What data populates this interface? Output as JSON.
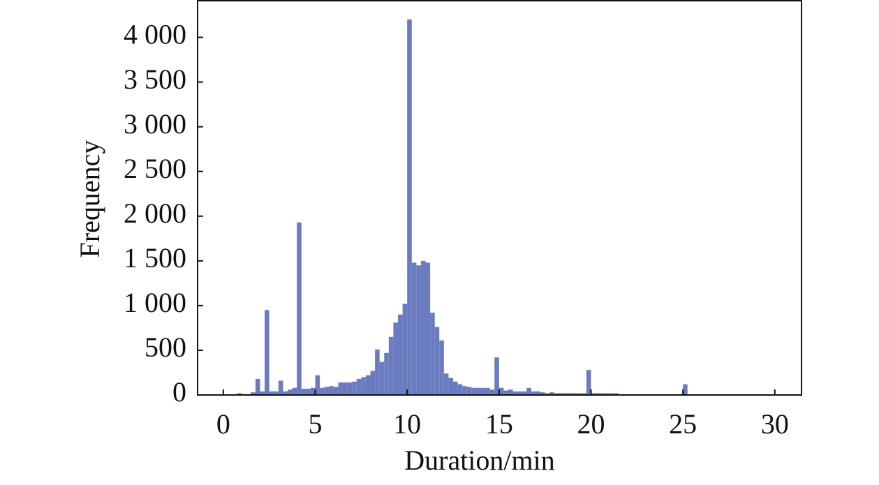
{
  "chart_data": {
    "type": "histogram",
    "xlabel": "Duration/min",
    "ylabel": "Frequency",
    "color": "#6b7bbf",
    "xlim": [
      -1.4,
      31.45
    ],
    "ylim": [
      0,
      4410
    ],
    "xticks": [
      0,
      5,
      10,
      15,
      20,
      25,
      30
    ],
    "yticks": [
      0,
      500,
      {
        "value": 1000,
        "label": "1 000"
      },
      {
        "value": 1500,
        "label": "1 500"
      },
      {
        "value": 2000,
        "label": "2 000"
      },
      {
        "value": 2500,
        "label": "2 500"
      },
      {
        "value": 3000,
        "label": "3 000"
      },
      {
        "value": 3500,
        "label": "3 500"
      },
      {
        "value": 4000,
        "label": "4 000"
      }
    ],
    "bins": [
      0.5,
      0.75,
      1,
      1.25,
      1.5,
      1.75,
      2,
      2.25,
      2.5,
      2.75,
      3,
      3.25,
      3.5,
      3.75,
      4,
      4.25,
      4.5,
      4.75,
      5,
      5.25,
      5.5,
      5.75,
      6,
      6.25,
      6.5,
      6.75,
      7,
      7.25,
      7.5,
      7.75,
      8,
      8.25,
      8.5,
      8.75,
      9,
      9.25,
      9.5,
      9.75,
      10,
      10.25,
      10.5,
      10.75,
      11,
      11.25,
      11.5,
      11.75,
      12,
      12.25,
      12.5,
      12.75,
      13,
      13.25,
      13.5,
      13.75,
      14,
      14.25,
      14.5,
      14.75,
      15,
      15.25,
      15.5,
      15.75,
      16,
      16.25,
      16.5,
      16.75,
      17,
      17.25,
      17.5,
      17.75,
      18,
      18.25,
      18.5,
      18.75,
      19,
      19.25,
      19.5,
      19.75,
      20,
      20.25,
      20.5,
      20.75,
      21,
      21.25,
      21.5,
      21.75,
      22,
      22.25,
      22.5,
      22.75,
      23,
      23.25,
      23.5,
      23.75,
      24,
      24.25,
      24.5,
      24.75,
      25,
      25.25
    ],
    "values": [
      0,
      20,
      10,
      10,
      30,
      180,
      40,
      950,
      40,
      40,
      160,
      40,
      60,
      80,
      1930,
      70,
      70,
      80,
      220,
      80,
      90,
      100,
      90,
      140,
      140,
      140,
      150,
      180,
      200,
      220,
      270,
      510,
      370,
      470,
      650,
      810,
      900,
      1020,
      4200,
      1480,
      1450,
      1500,
      1480,
      920,
      760,
      610,
      240,
      190,
      150,
      120,
      100,
      90,
      80,
      80,
      80,
      80,
      60,
      420,
      80,
      50,
      60,
      40,
      40,
      40,
      80,
      40,
      40,
      30,
      20,
      30,
      20,
      20,
      20,
      20,
      20,
      20,
      20,
      280,
      20,
      20,
      20,
      20,
      20,
      20,
      0,
      0,
      0,
      0,
      0,
      0,
      0,
      0,
      0,
      0,
      0,
      0,
      0,
      0,
      120
    ]
  }
}
